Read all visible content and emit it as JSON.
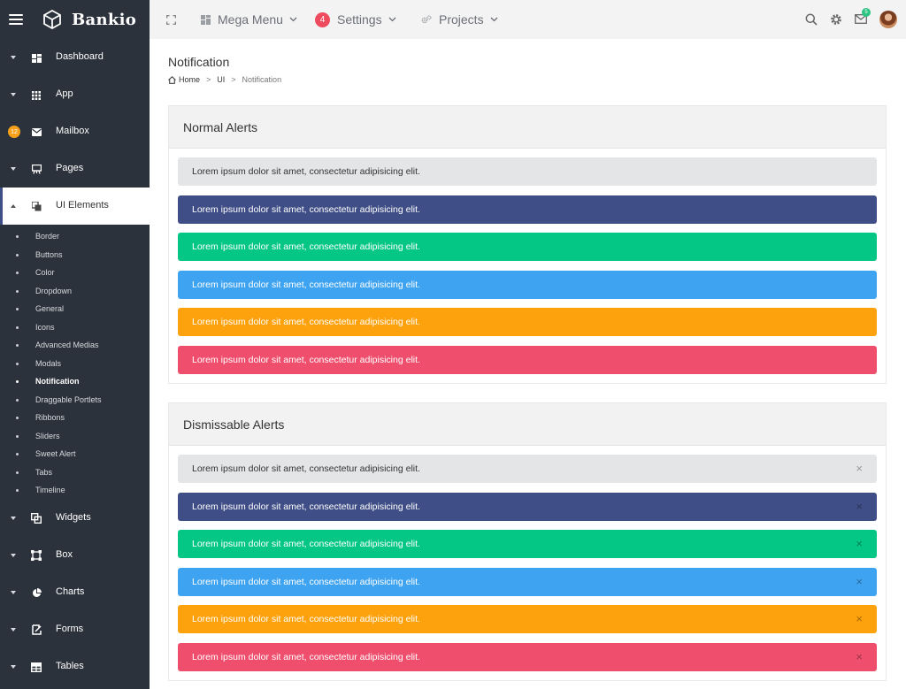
{
  "brand": {
    "name": "Bankio"
  },
  "sidebar": {
    "items_top": [
      {
        "label": "Dashboard",
        "icon": "dashboard-icon"
      },
      {
        "label": "App",
        "icon": "grid-icon"
      },
      {
        "label": "Mailbox",
        "icon": "mail-icon",
        "badge": "12"
      },
      {
        "label": "Pages",
        "icon": "presentation-icon"
      },
      {
        "label": "UI Elements",
        "icon": "copy-icon",
        "active": true
      }
    ],
    "submenu": [
      "Border",
      "Buttons",
      "Color",
      "Dropdown",
      "General",
      "Icons",
      "Advanced Medias",
      "Modals",
      "Notification",
      "Draggable Portlets",
      "Ribbons",
      "Sliders",
      "Sweet Alert",
      "Tabs",
      "Timeline"
    ],
    "submenu_current": "Notification",
    "items_bottom": [
      {
        "label": "Widgets",
        "icon": "widgets-icon"
      },
      {
        "label": "Box",
        "icon": "box-icon"
      },
      {
        "label": "Charts",
        "icon": "pie-chart-icon"
      },
      {
        "label": "Forms",
        "icon": "form-icon"
      },
      {
        "label": "Tables",
        "icon": "table-icon"
      }
    ]
  },
  "topbar": {
    "mega_menu": "Mega Menu",
    "settings": "Settings",
    "settings_badge": "4",
    "projects": "Projects",
    "mail_badge": "5"
  },
  "page": {
    "title": "Notification",
    "breadcrumb": {
      "home": "Home",
      "section": "UI",
      "current": "Notification"
    }
  },
  "normal_alerts": {
    "title": "Normal Alerts",
    "items": [
      {
        "text": "Lorem ipsum dolor sit amet, consectetur adipisicing elit.",
        "bg": "#e4e5e7",
        "color": "#333333"
      },
      {
        "text": "Lorem ipsum dolor sit amet, consectetur adipisicing elit.",
        "bg": "#3f4e86",
        "color": "#ffffff"
      },
      {
        "text": "Lorem ipsum dolor sit amet, consectetur adipisicing elit.",
        "bg": "#05c785",
        "color": "#ffffff"
      },
      {
        "text": "Lorem ipsum dolor sit amet, consectetur adipisicing elit.",
        "bg": "#3ea3f0",
        "color": "#ffffff"
      },
      {
        "text": "Lorem ipsum dolor sit amet, consectetur adipisicing elit.",
        "bg": "#fda10c",
        "color": "#ffffff"
      },
      {
        "text": "Lorem ipsum dolor sit amet, consectetur adipisicing elit.",
        "bg": "#ef4f6d",
        "color": "#ffffff"
      }
    ]
  },
  "dismissable_alerts": {
    "title": "Dismissable Alerts",
    "close_symbol": "×",
    "items": [
      {
        "text": "Lorem ipsum dolor sit amet, consectetur adipisicing elit.",
        "bg": "#e4e5e7",
        "color": "#333333"
      },
      {
        "text": "Lorem ipsum dolor sit amet, consectetur adipisicing elit.",
        "bg": "#3f4e86",
        "color": "#ffffff"
      },
      {
        "text": "Lorem ipsum dolor sit amet, consectetur adipisicing elit.",
        "bg": "#05c785",
        "color": "#ffffff"
      },
      {
        "text": "Lorem ipsum dolor sit amet, consectetur adipisicing elit.",
        "bg": "#3ea3f0",
        "color": "#ffffff"
      },
      {
        "text": "Lorem ipsum dolor sit amet, consectetur adipisicing elit.",
        "bg": "#fda10c",
        "color": "#ffffff"
      },
      {
        "text": "Lorem ipsum dolor sit amet, consectetur adipisicing elit.",
        "bg": "#ef4f6d",
        "color": "#ffffff"
      }
    ]
  }
}
